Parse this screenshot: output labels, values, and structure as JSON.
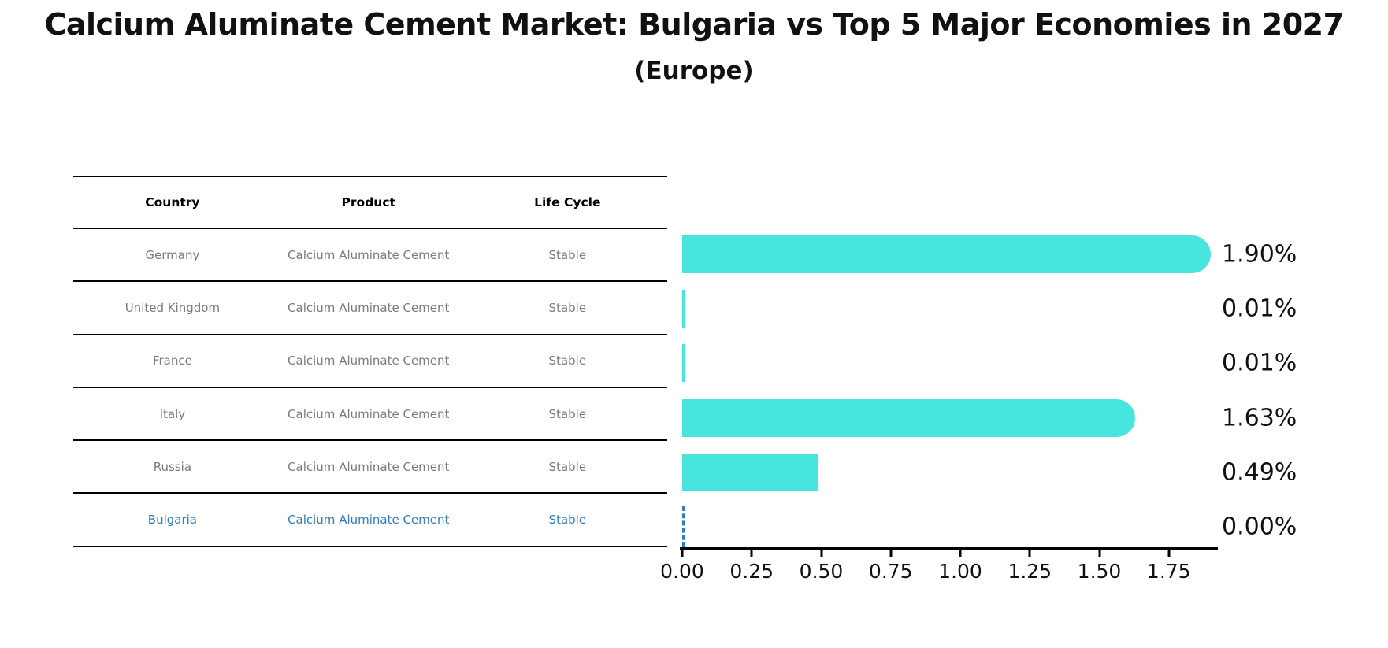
{
  "title": "Calcium Aluminate Cement Market: Bulgaria vs Top 5 Major Economies in 2027",
  "subtitle": "(Europe)",
  "table": {
    "headers": [
      "Country",
      "Product",
      "Life Cycle"
    ],
    "rows": [
      {
        "country": "Germany",
        "product": "Calcium Aluminate Cement",
        "life_cycle": "Stable",
        "highlighted": false
      },
      {
        "country": "United Kingdom",
        "product": "Calcium Aluminate Cement",
        "life_cycle": "Stable",
        "highlighted": false
      },
      {
        "country": "France",
        "product": "Calcium Aluminate Cement",
        "life_cycle": "Stable",
        "highlighted": false
      },
      {
        "country": "Italy",
        "product": "Calcium Aluminate Cement",
        "life_cycle": "Stable",
        "highlighted": false
      },
      {
        "country": "Russia",
        "product": "Calcium Aluminate Cement",
        "life_cycle": "Stable",
        "highlighted": false
      },
      {
        "country": "Bulgaria",
        "product": "Calcium Aluminate Cement",
        "life_cycle": "Stable",
        "highlighted": true
      }
    ]
  },
  "chart_data": {
    "type": "bar",
    "orientation": "horizontal",
    "title": "Calcium Aluminate Cement Market: Bulgaria vs Top 5 Major Economies in 2027",
    "subtitle": "(Europe)",
    "categories": [
      "Germany",
      "United Kingdom",
      "France",
      "Italy",
      "Russia",
      "Bulgaria"
    ],
    "values": [
      1.9,
      0.01,
      0.01,
      1.63,
      0.49,
      0.0
    ],
    "value_labels": [
      "1.90%",
      "0.01%",
      "0.01%",
      "1.63%",
      "0.49%",
      "0.00%"
    ],
    "x_ticks": [
      "0.00",
      "0.25",
      "0.50",
      "0.75",
      "1.00",
      "1.25",
      "1.50",
      "1.75"
    ],
    "xlim": [
      0,
      1.92
    ],
    "xlabel": "",
    "ylabel": "",
    "grid": false,
    "legend": false,
    "bar_color": "#48E5DF",
    "highlight_color": "#2E7EBD",
    "axis_color": "#000000",
    "label_color": "#111111"
  }
}
